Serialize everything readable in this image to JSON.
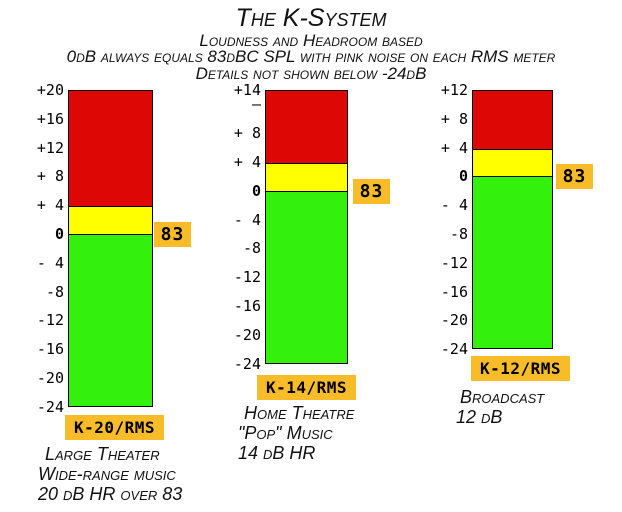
{
  "header": {
    "title": "The K-System",
    "subtitle": "Loudness and Headroom based",
    "line3": "0dB always equals 83dBC SPL with pink noise on each RMS meter",
    "line4": "Details not shown below -24dB"
  },
  "colors": {
    "over_zone_red": "#DD0806",
    "headroom_zone_yellow": "#FFFF00",
    "program_zone_green": "#33F00D",
    "badge_background": "#F8BC28",
    "outline": "#000000",
    "text": "#000000"
  },
  "chart_data": {
    "type": "bar",
    "title": "The K-System",
    "description": "Three K-System RMS meter scales (K-20, K-14, K-12) with red over-zone above +4 dB, yellow headroom zone +4 to 0 dB, green program zone 0 to -24 dB; 0 dB = 83 dB SPL on each meter",
    "meters": [
      {
        "name": "K-20/RMS",
        "scale_top_db": 20,
        "scale_bottom_db": -24,
        "red_zone_db": [
          20,
          4
        ],
        "yellow_zone_db": [
          4,
          0
        ],
        "green_zone_db": [
          0,
          -24
        ],
        "zero_spl": "83",
        "ticks": [
          {
            "db": 20,
            "label": "+20"
          },
          {
            "db": 16,
            "label": "+16"
          },
          {
            "db": 12,
            "label": "+12"
          },
          {
            "db": 8,
            "label": "+ 8"
          },
          {
            "db": 4,
            "label": "+ 4"
          },
          {
            "db": 0,
            "label": "0"
          },
          {
            "db": -4,
            "label": "- 4"
          },
          {
            "db": -8,
            "label": "-8"
          },
          {
            "db": -12,
            "label": "-12"
          },
          {
            "db": -16,
            "label": "-16"
          },
          {
            "db": -20,
            "label": "-20"
          },
          {
            "db": -24,
            "label": "-24"
          }
        ],
        "caption": [
          "Large Theater",
          "Wide-range music",
          "20 dB HR over 83"
        ]
      },
      {
        "name": "K-14/RMS",
        "scale_top_db": 14,
        "scale_bottom_db": -24,
        "red_zone_db": [
          14,
          4
        ],
        "yellow_zone_db": [
          4,
          0
        ],
        "green_zone_db": [
          0,
          -24
        ],
        "zero_spl": "83",
        "ticks": [
          {
            "db": 14,
            "label": "+14"
          },
          {
            "db": 12,
            "label": "–"
          },
          {
            "db": 8,
            "label": "+ 8"
          },
          {
            "db": 4,
            "label": "+ 4"
          },
          {
            "db": 0,
            "label": "0"
          },
          {
            "db": -4,
            "label": "- 4"
          },
          {
            "db": -8,
            "label": "-8"
          },
          {
            "db": -12,
            "label": "-12"
          },
          {
            "db": -16,
            "label": "-16"
          },
          {
            "db": -20,
            "label": "-20"
          },
          {
            "db": -24,
            "label": "-24"
          }
        ],
        "caption": [
          "Home Theatre",
          "\"Pop\" Music",
          "14 dB HR"
        ]
      },
      {
        "name": "K-12/RMS",
        "scale_top_db": 12,
        "scale_bottom_db": -24,
        "red_zone_db": [
          12,
          4
        ],
        "yellow_zone_db": [
          4,
          0
        ],
        "green_zone_db": [
          0,
          -24
        ],
        "zero_spl": "83",
        "ticks": [
          {
            "db": 12,
            "label": "+12"
          },
          {
            "db": 8,
            "label": "+ 8"
          },
          {
            "db": 4,
            "label": "+ 4"
          },
          {
            "db": 0,
            "label": "0"
          },
          {
            "db": -4,
            "label": "- 4"
          },
          {
            "db": -8,
            "label": "-8"
          },
          {
            "db": -12,
            "label": "-12"
          },
          {
            "db": -16,
            "label": "-16"
          },
          {
            "db": -20,
            "label": "-20"
          },
          {
            "db": -24,
            "label": "-24"
          }
        ],
        "caption": [
          "Broadcast",
          "12 dB"
        ]
      }
    ]
  }
}
